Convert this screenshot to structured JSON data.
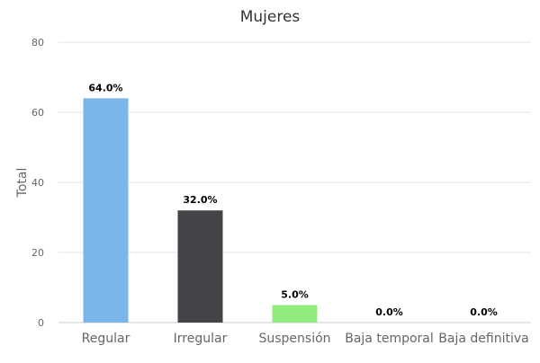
{
  "chart_data": {
    "type": "bar",
    "title": "Mujeres",
    "xlabel": "",
    "ylabel": "Total",
    "categories": [
      "Regular",
      "Irregular",
      "Suspensión",
      "Baja temporal",
      "Baja definitiva"
    ],
    "values": [
      64,
      32,
      5,
      0,
      0
    ],
    "data_labels": [
      "64.0%",
      "32.0%",
      "5.0%",
      "0.0%",
      "0.0%"
    ],
    "colors": [
      "#7cb5ec",
      "#434348",
      "#90ed7d",
      "#f7a35c",
      "#8085e9"
    ],
    "ylim": [
      0,
      80
    ],
    "yticks": [
      "0",
      "20",
      "40",
      "60",
      "80"
    ],
    "grid": true,
    "legend": "none"
  }
}
